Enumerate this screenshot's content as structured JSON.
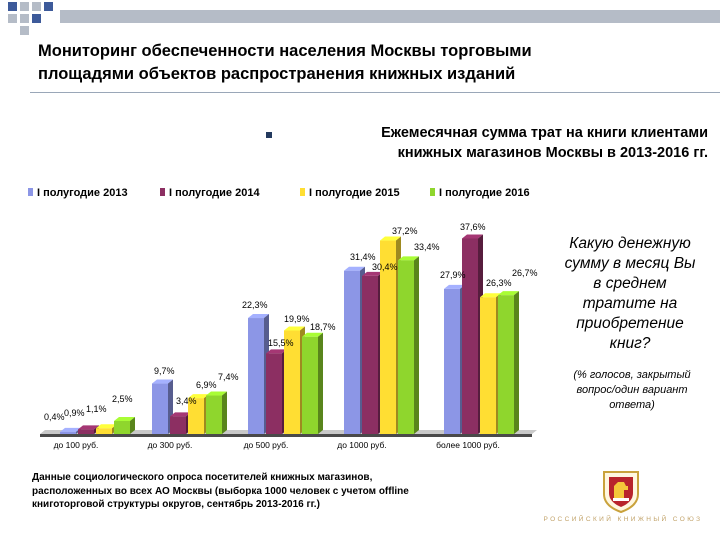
{
  "slide": {
    "title_lines": [
      "Мониторинг обеспеченности населения Москвы торговыми",
      "площадями объектов распространения книжных изданий"
    ],
    "subtitle_lines": [
      "Ежемесячная сумма трат на книги клиентами",
      "книжных магазинов Москвы в 2013-2016 гг."
    ],
    "question_lines": [
      "Какую денежную",
      "сумму в месяц Вы",
      "в среднем",
      "тратите на",
      "приобретение",
      "книг?"
    ],
    "note_lines": [
      "(% голосов, закрытый",
      "вопрос/один вариант",
      "ответа)"
    ],
    "source_lines": [
      "Данные социологического опроса посетителей книжных магазинов,",
      "расположенных во всех АО Москвы (выборка 1000 человек с учетом offline",
      "книготорговой структуры округов, сентябрь 2013-2016 гг.)"
    ],
    "footer_brand": "РОССИЙСКИЙ КНИЖНЫЙ СОЮЗ",
    "emblem_icon": "russian-book-union-emblem"
  },
  "colors": {
    "header_blue": "#3d5a9a",
    "header_gray": "#b5bcc7",
    "brand_gold": "#c2a36a"
  },
  "chart_data": {
    "type": "bar",
    "categories": [
      "до 100 руб.",
      "до 300 руб.",
      "до 500 руб.",
      "до 1000 руб.",
      "более 1000 руб."
    ],
    "series": [
      {
        "name": "I полугодие 2013",
        "color": "#8c96e6",
        "values": [
          0.4,
          9.7,
          22.3,
          31.4,
          27.9
        ],
        "labels": [
          "0,4%",
          "9,7%",
          "22,3%",
          "31,4%",
          "27,9%"
        ]
      },
      {
        "name": "I полугодие 2014",
        "color": "#8c2f62",
        "values": [
          0.9,
          3.4,
          15.5,
          30.4,
          37.6
        ],
        "labels": [
          "0,9%",
          "3,4%",
          "15,5%",
          "30,4%",
          "37,6%"
        ]
      },
      {
        "name": "I полугодие 2015",
        "color": "#ffde33",
        "values": [
          1.1,
          6.9,
          19.9,
          37.2,
          26.3
        ],
        "labels": [
          "1,1%",
          "6,9%",
          "19,9%",
          "37,2%",
          "26,3%"
        ]
      },
      {
        "name": "I полугодие 2016",
        "color": "#8fd62d",
        "values": [
          2.5,
          7.4,
          18.7,
          33.4,
          26.7
        ],
        "labels": [
          "2,5%",
          "7,4%",
          "18,7%",
          "33,4%",
          "26,7%"
        ]
      }
    ],
    "ylim": [
      0,
      40
    ],
    "legend_position": "top",
    "grid": false
  }
}
